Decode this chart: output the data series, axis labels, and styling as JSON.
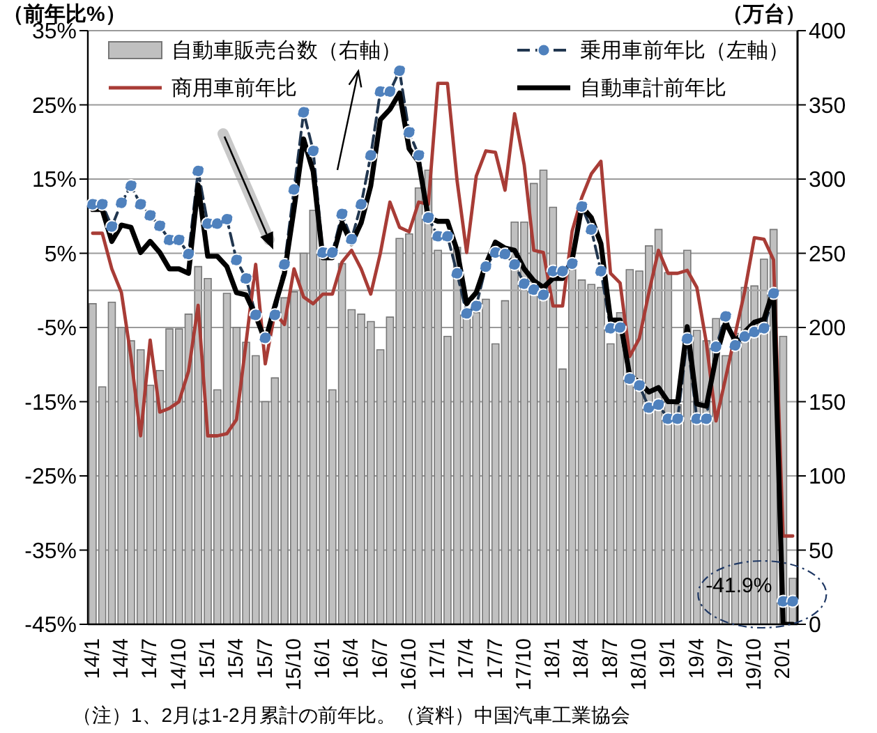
{
  "chart_data": {
    "type": "line",
    "ylabel": "（前年比%）",
    "y2label": "（万台）",
    "categories": [
      "14/1",
      null,
      null,
      "14/4",
      null,
      null,
      "14/7",
      null,
      null,
      "14/10",
      null,
      null,
      "15/1",
      null,
      null,
      "15/4",
      null,
      null,
      "15/7",
      null,
      null,
      "15/10",
      null,
      null,
      "16/1",
      null,
      null,
      "16/4",
      null,
      null,
      "16/7",
      null,
      null,
      "16/10",
      null,
      null,
      "17/1",
      null,
      null,
      "17/4",
      null,
      null,
      "17/7",
      null,
      null,
      "17/10",
      null,
      null,
      "18/1",
      null,
      null,
      "18/4",
      null,
      null,
      "18/7",
      null,
      null,
      "18/10",
      null,
      null,
      "19/1",
      null,
      null,
      "19/4",
      null,
      null,
      "19/7",
      null,
      null,
      "19/10",
      null,
      null,
      "20/1",
      null
    ],
    "series": [
      {
        "name": "自動車販売台数（右軸）",
        "type": "bar",
        "axis": "y2",
        "color": "#c0c0c0",
        "values": [
          216,
          160,
          217,
          200,
          191,
          185,
          161,
          171,
          199,
          199,
          209,
          241,
          233,
          158,
          223,
          200,
          190,
          181,
          150,
          166,
          220,
          224,
          250,
          279,
          251,
          158,
          243,
          212,
          209,
          204,
          185,
          207,
          260,
          263,
          294,
          306,
          252,
          194,
          254,
          208,
          210,
          219,
          189,
          218,
          271,
          271,
          297,
          306,
          281,
          172,
          239,
          232,
          229,
          227,
          189,
          210,
          239,
          238,
          255,
          266,
          237,
          148,
          252,
          198,
          191,
          206,
          181,
          196,
          227,
          228,
          246,
          266,
          194,
          31
        ]
      },
      {
        "name": "乗用車前年比（左軸）",
        "color": "#4f81bd",
        "marker": "circle",
        "line_style": "dashed",
        "values": [
          11.6,
          11.6,
          8.6,
          11.8,
          14.1,
          11.6,
          10.1,
          8.7,
          6.8,
          6.8,
          4.9,
          16.1,
          9.0,
          9.0,
          9.6,
          4.1,
          1.6,
          -3.3,
          -6.4,
          -3.3,
          3.5,
          13.6,
          24.0,
          18.8,
          5.1,
          5.1,
          10.3,
          6.9,
          11.6,
          18.2,
          26.8,
          26.8,
          29.6,
          21.3,
          18.2,
          9.8,
          7.3,
          7.3,
          2.3,
          -3.1,
          -2.1,
          3.2,
          5.1,
          4.9,
          3.5,
          0.9,
          0.1,
          -0.6,
          2.6,
          2.6,
          3.6,
          11.3,
          8.2,
          2.6,
          -5.1,
          -5.0,
          -11.9,
          -12.8,
          -15.8,
          -15.4,
          -17.3,
          -17.3,
          -6.5,
          -17.3,
          -17.3,
          -7.6,
          -3.5,
          -7.4,
          -6.2,
          -5.6,
          -5.1,
          -0.4,
          -41.9,
          -41.9
        ]
      },
      {
        "name": "商用車前年比",
        "color": "#a83c36",
        "values": [
          7.7,
          7.7,
          2.9,
          -0.3,
          -9.0,
          -19.6,
          -6.7,
          -16.4,
          -15.9,
          -15.0,
          -10.9,
          -2.0,
          -19.6,
          -19.6,
          -19.3,
          -17.4,
          -7.0,
          3.5,
          -9.9,
          -3.0,
          -4.6,
          2.9,
          -0.9,
          -1.8,
          -0.5,
          -0.5,
          3.8,
          5.4,
          2.9,
          -0.5,
          5.0,
          11.9,
          8.5,
          7.9,
          11.9,
          11.6,
          27.9,
          27.9,
          14.8,
          5.1,
          15.4,
          18.8,
          18.6,
          13.5,
          23.8,
          16.9,
          5.4,
          5.1,
          -2.1,
          -2.1,
          8.0,
          12.5,
          15.7,
          17.4,
          2.3,
          1.0,
          -8.9,
          -6.5,
          -0.3,
          5.4,
          2.3,
          2.3,
          2.7,
          0.4,
          -7.1,
          -17.6,
          -11.8,
          -5.9,
          -0.1,
          7.1,
          6.9,
          4.1,
          -33.1,
          -33.1
        ]
      },
      {
        "name": "自動車計前年比",
        "color": "#000000",
        "values": [
          10.9,
          10.9,
          6.6,
          8.8,
          8.5,
          5.1,
          6.6,
          5.1,
          2.9,
          2.9,
          2.3,
          14.2,
          4.6,
          4.6,
          3.2,
          -0.3,
          -0.6,
          -3.4,
          -6.8,
          -2.1,
          2.3,
          11.0,
          20.4,
          16.0,
          4.4,
          4.4,
          9.1,
          6.3,
          9.1,
          14.1,
          23.0,
          24.4,
          26.6,
          19.1,
          17.3,
          9.8,
          9.3,
          9.3,
          5.4,
          -1.8,
          -0.3,
          3.5,
          6.5,
          5.7,
          5.4,
          2.9,
          1.3,
          0.4,
          1.6,
          1.6,
          4.1,
          11.3,
          9.8,
          6.3,
          -4.0,
          -4.0,
          -11.5,
          -12.4,
          -13.7,
          -13.1,
          -15.0,
          -15.0,
          -4.9,
          -15.3,
          -15.6,
          -9.0,
          -4.3,
          -6.8,
          -5.6,
          -4.3,
          -3.9,
          0.1,
          -45,
          -45
        ]
      }
    ],
    "ylim": [
      -45,
      35
    ],
    "yticks": [
      {
        "value": -45,
        "label": "-45%"
      },
      {
        "value": -35,
        "label": "-35%"
      },
      {
        "value": -25,
        "label": "-25%"
      },
      {
        "value": -15,
        "label": "-15%"
      },
      {
        "value": -5,
        "label": "-5%"
      },
      {
        "value": 5,
        "label": "5%"
      },
      {
        "value": 15,
        "label": "15%"
      },
      {
        "value": 25,
        "label": "25%"
      },
      {
        "value": 35,
        "label": "35%"
      }
    ],
    "y2lim": [
      0,
      400
    ],
    "y2ticks": [
      0,
      50,
      100,
      150,
      200,
      250,
      300,
      350,
      400
    ],
    "grid": "y",
    "legend": "top",
    "ref_lines": [
      {
        "axis": "y",
        "value": 0,
        "color": "#a6a6a6"
      }
    ],
    "annotations": [
      {
        "text": "-41.9%",
        "x": "20/1",
        "y": -41.9
      },
      "（注）1、2月は1-2月累計の前年比。（資料）中国汽車工業協会"
    ]
  }
}
